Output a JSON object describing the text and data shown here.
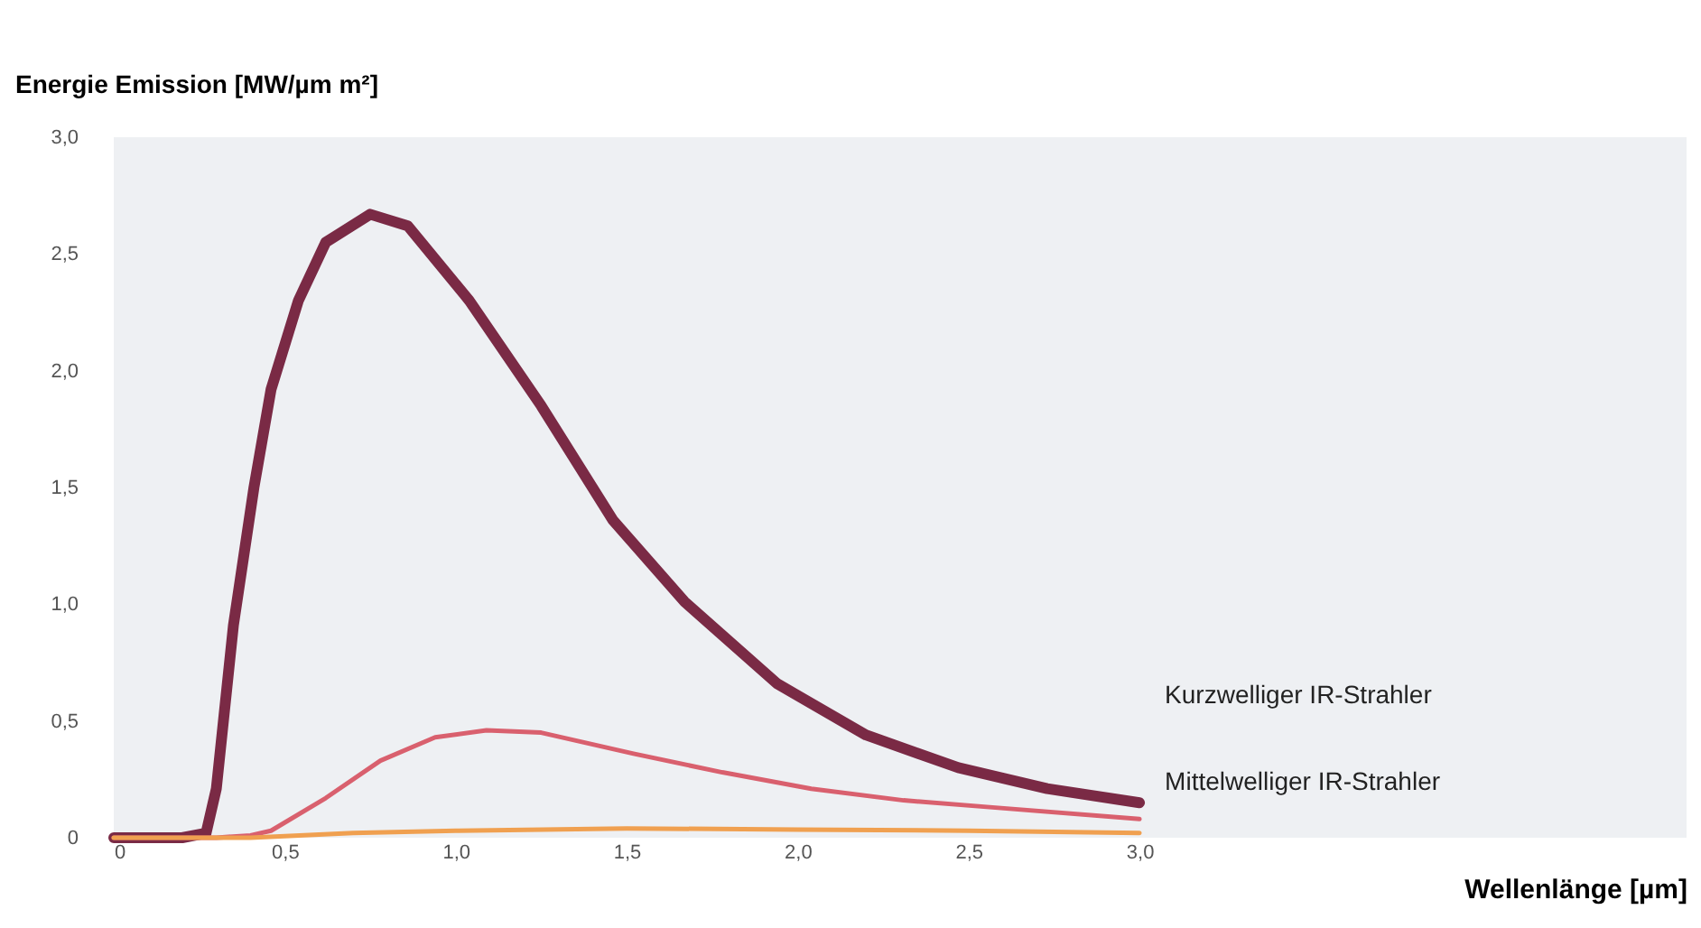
{
  "chart_data": {
    "type": "line",
    "ylabel": "Energie Emission [MW/µm m²]",
    "xlabel": "Wellenlänge [µm]",
    "xlim": [
      0,
      4.6
    ],
    "ylim": [
      0,
      3
    ],
    "xticks": [
      0,
      {
        "value": 0.5,
        "label": "0,5"
      },
      {
        "value": 1,
        "label": "1,0"
      },
      {
        "value": 1.5,
        "label": "1,5"
      },
      {
        "value": 2,
        "label": "2,0"
      },
      {
        "value": 2.5,
        "label": "2,5"
      },
      {
        "value": 3,
        "label": "3,0"
      }
    ],
    "yticks": [
      0,
      {
        "value": 0.5,
        "label": "0,5"
      },
      {
        "value": 1,
        "label": "1,0"
      },
      {
        "value": 1.5,
        "label": "1,5"
      },
      {
        "value": 2,
        "label": "2,0"
      },
      {
        "value": 2.5,
        "label": "2,5"
      },
      {
        "value": 3,
        "label": "3,0"
      }
    ],
    "grid": false,
    "marker": "none",
    "line_style": "solid",
    "series": [
      {
        "color": "#7a2a45",
        "x": [
          0,
          0.2,
          0.27,
          0.3,
          0.35,
          0.41,
          0.46,
          0.54,
          0.62,
          0.75,
          0.86,
          1.04,
          1.25,
          1.46,
          1.67,
          1.94,
          2.2,
          2.47,
          2.73,
          3.0
        ],
        "values": [
          0,
          0,
          0.02,
          0.21,
          0.91,
          1.5,
          1.92,
          2.3,
          2.55,
          2.67,
          2.62,
          2.3,
          1.85,
          1.36,
          1.01,
          0.66,
          0.44,
          0.3,
          0.21,
          0.15
        ]
      },
      {
        "name": "Kurzwelliger IR-Strahler",
        "color": "#d9606e",
        "x": [
          0,
          0.3,
          0.4,
          0.46,
          0.62,
          0.78,
          0.94,
          1.09,
          1.25,
          1.52,
          1.78,
          2.04,
          2.31,
          2.57,
          3.0
        ],
        "values": [
          0,
          0,
          0.01,
          0.03,
          0.17,
          0.33,
          0.43,
          0.46,
          0.45,
          0.36,
          0.28,
          0.21,
          0.16,
          0.13,
          0.08
        ]
      },
      {
        "name": "Mittelwelliger IR-Strahler",
        "color": "#f0a050",
        "x": [
          0,
          0.4,
          0.7,
          1.0,
          1.5,
          2.0,
          2.5,
          3.0
        ],
        "values": [
          0,
          0,
          0.02,
          0.03,
          0.04,
          0.035,
          0.03,
          0.02
        ]
      }
    ]
  }
}
